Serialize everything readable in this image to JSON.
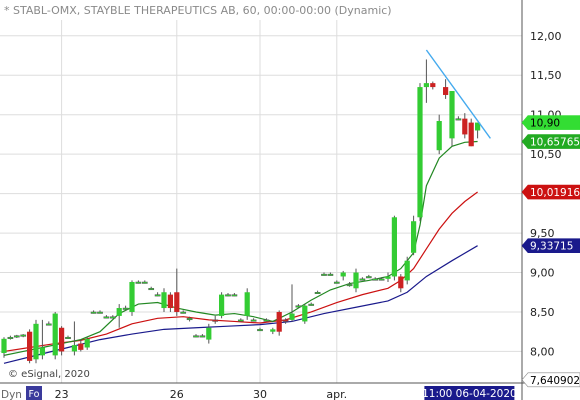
{
  "header": {
    "title": "* STABL-OMX, STAYBLE THERAPEUTICS AB, 60, 00:00-00:00 (Dynamic)"
  },
  "footer": {
    "credit": "© eSignal, 2020",
    "corner_label": "Dyn",
    "corner_badge": "Fo"
  },
  "colors": {
    "up": "#33cc33",
    "down": "#cc2222",
    "price_line": "#228822",
    "ma_red": "#cc1111",
    "ma_blue": "#1a1a8c",
    "trendline": "#44aaee",
    "grid": "#dddddd",
    "axis_text": "#222222"
  },
  "chart_data": {
    "type": "candlestick",
    "title": "* STABL-OMX, STAYBLE THERAPEUTICS AB, 60, 00:00-00:00 (Dynamic)",
    "ylim": [
      7.6,
      12.2
    ],
    "y_ticks": [
      "12,00",
      "11,50",
      "11,00",
      "10,50",
      "10,00",
      "9,50",
      "9,00",
      "8,50",
      "8,00"
    ],
    "y_tick_values": [
      12.0,
      11.5,
      11.0,
      10.5,
      10.0,
      9.5,
      9.0,
      8.5,
      8.0
    ],
    "x_ticks": [
      "23",
      "26",
      "30",
      "apr."
    ],
    "x_tick_index": [
      9,
      27,
      40,
      52
    ],
    "time_label": "11:00 06-04-2020",
    "time_label_index": 66,
    "right_labels": [
      {
        "text": "10,90",
        "value": 10.9,
        "fill": "#33dd33",
        "color": "#000000"
      },
      {
        "text": "10,657658",
        "value": 10.66,
        "fill": "#22aa22",
        "color": "#ffffff"
      },
      {
        "text": "10,019164",
        "value": 10.02,
        "fill": "#cc1111",
        "color": "#ffffff"
      },
      {
        "text": "9,33715",
        "value": 9.34,
        "fill": "#1a1a8c",
        "color": "#ffffff"
      },
      {
        "text": "7,640902",
        "value": 7.64,
        "fill": "#ffffff",
        "color": "#000000"
      }
    ],
    "candles": [
      [
        7.98,
        8.18,
        7.92,
        8.16
      ],
      [
        8.18,
        8.2,
        8.15,
        8.18
      ],
      [
        8.19,
        8.21,
        8.17,
        8.2
      ],
      [
        8.2,
        8.22,
        8.18,
        8.21
      ],
      [
        8.25,
        8.28,
        7.85,
        7.88
      ],
      [
        7.9,
        8.4,
        7.85,
        8.35
      ],
      [
        7.95,
        8.4,
        7.9,
        8.05
      ],
      [
        8.35,
        8.38,
        8.33,
        8.35
      ],
      [
        7.95,
        8.5,
        7.9,
        8.48
      ],
      [
        8.3,
        8.32,
        7.95,
        8.0
      ],
      [
        8.18,
        8.2,
        8.16,
        8.18
      ],
      [
        8.0,
        8.38,
        7.95,
        8.08
      ],
      [
        8.1,
        8.15,
        8.0,
        8.02
      ],
      [
        8.05,
        8.18,
        8.02,
        8.16
      ],
      [
        8.5,
        8.52,
        8.48,
        8.5
      ],
      [
        8.5,
        8.52,
        8.48,
        8.5
      ],
      [
        8.44,
        8.46,
        8.42,
        8.44
      ],
      [
        8.44,
        8.46,
        8.42,
        8.44
      ],
      [
        8.45,
        8.6,
        8.3,
        8.55
      ],
      [
        8.55,
        8.58,
        8.52,
        8.55
      ],
      [
        8.5,
        8.9,
        8.45,
        8.88
      ],
      [
        8.88,
        8.9,
        8.86,
        8.88
      ],
      [
        8.88,
        8.9,
        8.86,
        8.88
      ],
      [
        8.8,
        8.82,
        8.78,
        8.8
      ],
      [
        8.72,
        8.75,
        8.7,
        8.72
      ],
      [
        8.55,
        8.8,
        8.5,
        8.75
      ],
      [
        8.72,
        8.75,
        8.5,
        8.55
      ],
      [
        8.75,
        9.05,
        8.45,
        8.5
      ],
      [
        8.5,
        8.52,
        8.48,
        8.5
      ],
      [
        8.42,
        8.44,
        8.38,
        8.42
      ],
      [
        8.2,
        8.22,
        8.18,
        8.2
      ],
      [
        8.2,
        8.22,
        8.18,
        8.2
      ],
      [
        8.15,
        8.35,
        8.1,
        8.3
      ],
      [
        8.4,
        8.45,
        8.35,
        8.38
      ],
      [
        8.45,
        8.75,
        8.42,
        8.72
      ],
      [
        8.72,
        8.74,
        8.7,
        8.72
      ],
      [
        8.72,
        8.74,
        8.7,
        8.72
      ],
      [
        8.4,
        8.42,
        8.38,
        8.4
      ],
      [
        8.45,
        8.8,
        8.4,
        8.75
      ],
      [
        8.4,
        8.42,
        8.38,
        8.4
      ],
      [
        8.28,
        8.3,
        8.26,
        8.28
      ],
      [
        8.4,
        8.42,
        8.38,
        8.4
      ],
      [
        8.25,
        8.3,
        8.22,
        8.28
      ],
      [
        8.5,
        8.52,
        8.2,
        8.25
      ],
      [
        8.4,
        8.42,
        8.35,
        8.38
      ],
      [
        8.4,
        8.85,
        8.38,
        8.48
      ],
      [
        8.58,
        8.6,
        8.56,
        8.58
      ],
      [
        8.38,
        8.6,
        8.35,
        8.58
      ],
      [
        8.6,
        8.62,
        8.58,
        8.6
      ],
      [
        8.75,
        8.77,
        8.73,
        8.75
      ],
      [
        8.98,
        9.0,
        8.96,
        8.98
      ],
      [
        8.98,
        9.0,
        8.96,
        8.98
      ],
      [
        8.88,
        8.9,
        8.86,
        8.88
      ],
      [
        8.95,
        9.02,
        8.9,
        9.0
      ],
      [
        8.85,
        8.88,
        8.82,
        8.85
      ],
      [
        8.8,
        9.05,
        8.75,
        9.0
      ],
      [
        8.92,
        8.94,
        8.9,
        8.92
      ],
      [
        8.95,
        8.97,
        8.93,
        8.95
      ],
      [
        8.92,
        8.94,
        8.9,
        8.92
      ],
      [
        8.92,
        8.94,
        8.9,
        8.92
      ],
      [
        8.92,
        9.0,
        8.88,
        8.95
      ],
      [
        8.95,
        9.72,
        8.9,
        9.7
      ],
      [
        8.95,
        8.98,
        8.75,
        8.8
      ],
      [
        8.9,
        9.2,
        8.85,
        9.15
      ],
      [
        9.25,
        9.72,
        9.22,
        9.65
      ],
      [
        9.7,
        11.4,
        9.65,
        11.35
      ],
      [
        11.35,
        11.7,
        11.15,
        11.4
      ],
      [
        11.4,
        11.42,
        11.32,
        11.35
      ],
      [
        10.55,
        11.0,
        10.5,
        10.92
      ],
      [
        11.35,
        11.45,
        11.2,
        11.25
      ],
      [
        10.7,
        11.3,
        10.6,
        11.3
      ],
      [
        10.95,
        10.98,
        10.93,
        10.95
      ],
      [
        10.95,
        11.02,
        10.7,
        10.75
      ],
      [
        10.9,
        10.95,
        10.6,
        10.6
      ],
      [
        10.8,
        10.9,
        10.7,
        10.9
      ]
    ],
    "ma_green": [
      [
        0,
        7.95
      ],
      [
        3,
        8.0
      ],
      [
        6,
        8.05
      ],
      [
        9,
        8.1
      ],
      [
        12,
        8.15
      ],
      [
        15,
        8.25
      ],
      [
        18,
        8.48
      ],
      [
        21,
        8.6
      ],
      [
        24,
        8.62
      ],
      [
        27,
        8.55
      ],
      [
        30,
        8.5
      ],
      [
        33,
        8.46
      ],
      [
        36,
        8.48
      ],
      [
        39,
        8.44
      ],
      [
        42,
        8.38
      ],
      [
        45,
        8.5
      ],
      [
        48,
        8.65
      ],
      [
        51,
        8.78
      ],
      [
        54,
        8.86
      ],
      [
        57,
        8.9
      ],
      [
        60,
        8.95
      ],
      [
        62,
        9.05
      ],
      [
        64,
        9.25
      ],
      [
        65,
        9.6
      ],
      [
        66,
        10.1
      ],
      [
        68,
        10.45
      ],
      [
        70,
        10.6
      ],
      [
        72,
        10.65
      ],
      [
        74,
        10.66
      ]
    ],
    "ma_red": [
      [
        0,
        8.0
      ],
      [
        4,
        8.05
      ],
      [
        8,
        8.1
      ],
      [
        12,
        8.14
      ],
      [
        16,
        8.22
      ],
      [
        20,
        8.35
      ],
      [
        24,
        8.42
      ],
      [
        28,
        8.44
      ],
      [
        32,
        8.4
      ],
      [
        36,
        8.38
      ],
      [
        40,
        8.36
      ],
      [
        44,
        8.4
      ],
      [
        48,
        8.5
      ],
      [
        52,
        8.62
      ],
      [
        56,
        8.72
      ],
      [
        60,
        8.8
      ],
      [
        62,
        8.9
      ],
      [
        64,
        9.05
      ],
      [
        66,
        9.3
      ],
      [
        68,
        9.55
      ],
      [
        70,
        9.75
      ],
      [
        72,
        9.9
      ],
      [
        74,
        10.02
      ]
    ],
    "ma_blue": [
      [
        0,
        7.85
      ],
      [
        5,
        7.95
      ],
      [
        10,
        8.05
      ],
      [
        15,
        8.15
      ],
      [
        20,
        8.22
      ],
      [
        25,
        8.28
      ],
      [
        30,
        8.3
      ],
      [
        35,
        8.32
      ],
      [
        40,
        8.34
      ],
      [
        45,
        8.38
      ],
      [
        50,
        8.48
      ],
      [
        55,
        8.56
      ],
      [
        60,
        8.64
      ],
      [
        63,
        8.75
      ],
      [
        66,
        8.95
      ],
      [
        70,
        9.15
      ],
      [
        74,
        9.34
      ]
    ],
    "trendline": [
      [
        66,
        11.82
      ],
      [
        76,
        10.7
      ]
    ]
  }
}
